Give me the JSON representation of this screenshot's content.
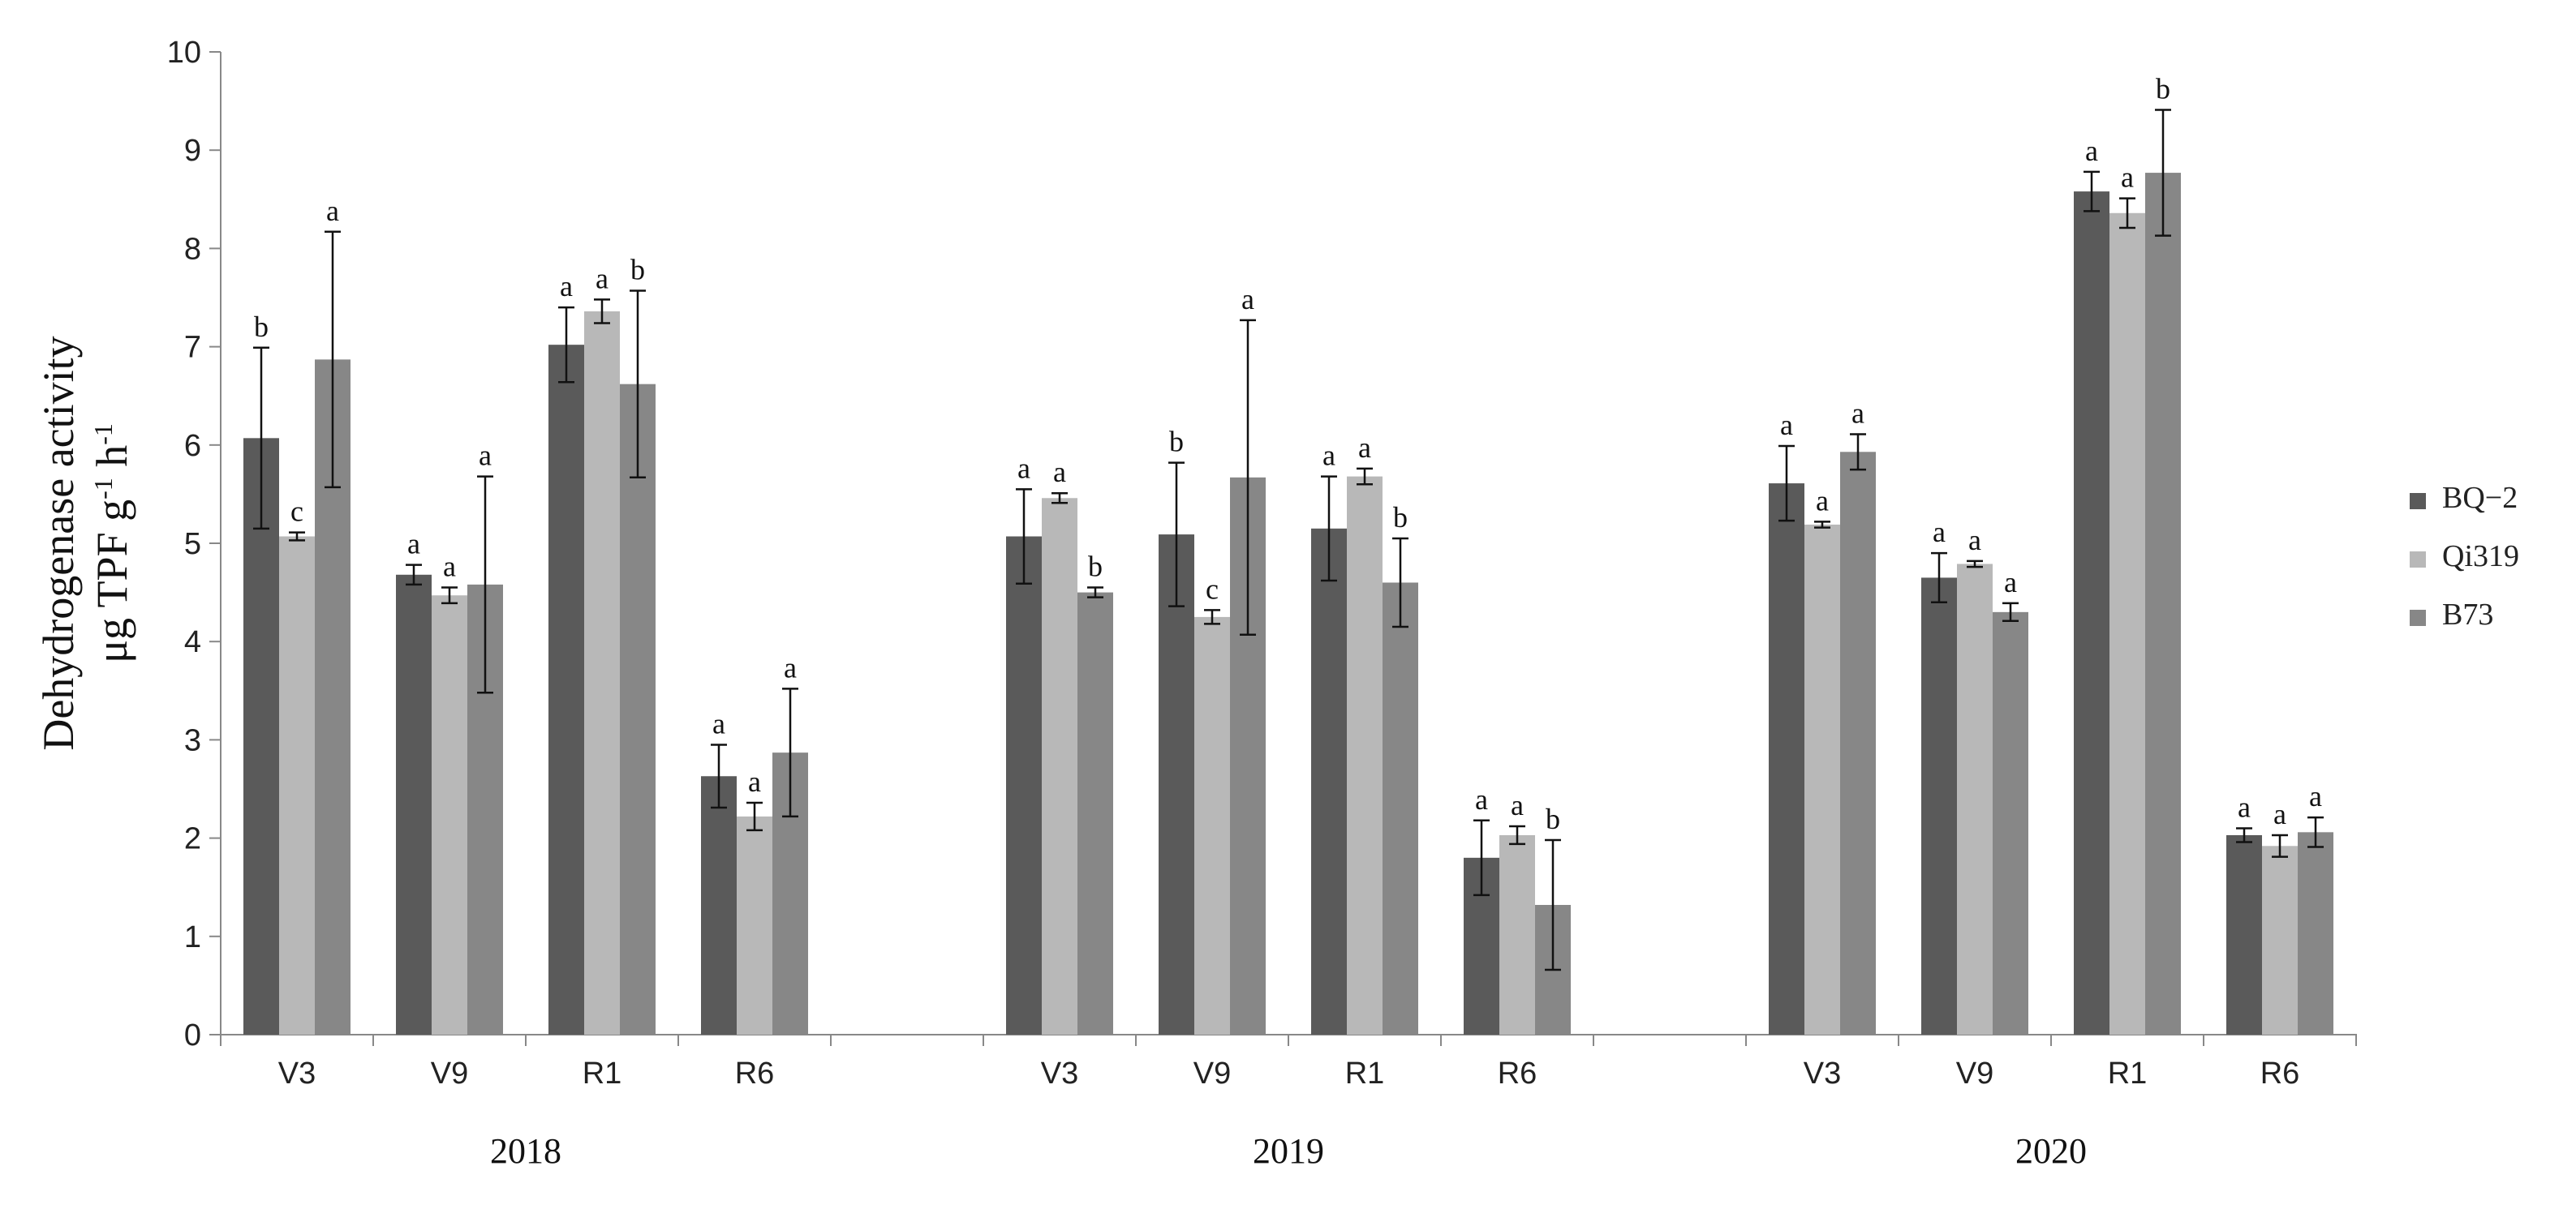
{
  "chart_data": {
    "type": "bar",
    "ylabel_parts": [
      {
        "text": "Dehydrogenase  activity"
      },
      {
        "text": "μg TPF g"
      },
      {
        "text": "-1",
        "sup": true
      },
      {
        "text": " h"
      },
      {
        "text": "-1",
        "sup": true
      }
    ],
    "ylim": [
      0,
      10
    ],
    "yticks": [
      0,
      1,
      2,
      3,
      4,
      5,
      6,
      7,
      8,
      9,
      10
    ],
    "grid": false,
    "legend_position": "right",
    "series": [
      {
        "name": "BQ−2",
        "color": "#5a5a5a"
      },
      {
        "name": "Qi319",
        "color": "#b8b8b8"
      },
      {
        "name": "B73",
        "color": "#878787"
      }
    ],
    "groups": [
      {
        "label": "2018",
        "categories": [
          {
            "label": "V3",
            "values": [
              6.07,
              5.07,
              6.87
            ],
            "errors": [
              0.92,
              0.04,
              1.3
            ],
            "letters": [
              "b",
              "c",
              "a"
            ]
          },
          {
            "label": "V9",
            "values": [
              4.68,
              4.47,
              4.58
            ],
            "errors": [
              0.1,
              0.08,
              1.1
            ],
            "letters": [
              "a",
              "a",
              "a"
            ]
          },
          {
            "label": "R1",
            "values": [
              7.02,
              7.36,
              6.62
            ],
            "errors": [
              0.38,
              0.12,
              0.95
            ],
            "letters": [
              "a",
              "a",
              "b"
            ]
          },
          {
            "label": "R6",
            "values": [
              2.63,
              2.22,
              2.87
            ],
            "errors": [
              0.32,
              0.14,
              0.65
            ],
            "letters": [
              "a",
              "a",
              "a"
            ]
          }
        ]
      },
      {
        "label": "2019",
        "categories": [
          {
            "label": "V3",
            "values": [
              5.07,
              5.46,
              4.5
            ],
            "errors": [
              0.48,
              0.05,
              0.05
            ],
            "letters": [
              "a",
              "a",
              "b"
            ]
          },
          {
            "label": "V9",
            "values": [
              5.09,
              4.25,
              5.67
            ],
            "errors": [
              0.73,
              0.07,
              1.6
            ],
            "letters": [
              "b",
              "c",
              "a"
            ]
          },
          {
            "label": "R1",
            "values": [
              5.15,
              5.68,
              4.6
            ],
            "errors": [
              0.53,
              0.08,
              0.45
            ],
            "letters": [
              "a",
              "a",
              "b"
            ]
          },
          {
            "label": "R6",
            "values": [
              1.8,
              2.03,
              1.32
            ],
            "errors": [
              0.38,
              0.09,
              0.66
            ],
            "letters": [
              "a",
              "a",
              "b"
            ]
          }
        ]
      },
      {
        "label": "2020",
        "categories": [
          {
            "label": "V3",
            "values": [
              5.61,
              5.19,
              5.93
            ],
            "errors": [
              0.38,
              0.03,
              0.18
            ],
            "letters": [
              "a",
              "a",
              "a"
            ]
          },
          {
            "label": "V9",
            "values": [
              4.65,
              4.79,
              4.3
            ],
            "errors": [
              0.25,
              0.03,
              0.09
            ],
            "letters": [
              "a",
              "a",
              "a"
            ]
          },
          {
            "label": "R1",
            "values": [
              8.58,
              8.36,
              8.77
            ],
            "errors": [
              0.2,
              0.15,
              0.64
            ],
            "letters": [
              "a",
              "a",
              "b"
            ]
          },
          {
            "label": "R6",
            "values": [
              2.03,
              1.92,
              2.06
            ],
            "errors": [
              0.07,
              0.11,
              0.15
            ],
            "letters": [
              "a",
              "a",
              "a"
            ]
          }
        ]
      }
    ]
  }
}
